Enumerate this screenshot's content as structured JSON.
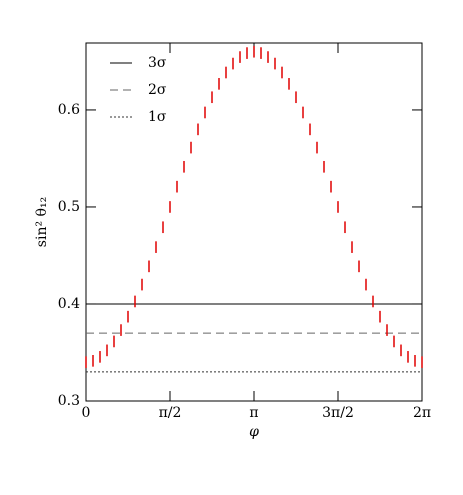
{
  "chart_data": {
    "type": "errorbar",
    "xlabel": "φ",
    "ylabel": "sin² θ₁₂",
    "color": "#e00000",
    "x": [
      0,
      0.1309,
      0.2618,
      0.3927,
      0.5236,
      0.6545,
      0.7854,
      0.9163,
      1.0472,
      1.1781,
      1.309,
      1.4399,
      1.5708,
      1.7017,
      1.8326,
      1.9635,
      2.0944,
      2.2253,
      2.3562,
      2.4871,
      2.618,
      2.7489,
      2.8798,
      3.0107,
      3.1416,
      3.2725,
      3.4034,
      3.5343,
      3.6652,
      3.7961,
      3.927,
      4.0579,
      4.1888,
      4.3197,
      4.4506,
      4.5815,
      4.7124,
      4.8433,
      4.9742,
      5.1051,
      5.236,
      5.3669,
      5.4978,
      5.6287,
      5.7596,
      5.8905,
      6.0214,
      6.1523,
      6.2832
    ],
    "values": [
      0.34,
      0.3414,
      0.3455,
      0.3522,
      0.3614,
      0.3731,
      0.3869,
      0.4026,
      0.42,
      0.4388,
      0.4586,
      0.4791,
      0.5,
      0.5209,
      0.5414,
      0.5612,
      0.58,
      0.5974,
      0.6131,
      0.6269,
      0.6386,
      0.6478,
      0.6545,
      0.6586,
      0.66,
      0.6586,
      0.6545,
      0.6478,
      0.6386,
      0.6269,
      0.6131,
      0.5974,
      0.58,
      0.5612,
      0.5414,
      0.5209,
      0.5,
      0.4791,
      0.4586,
      0.4388,
      0.42,
      0.4026,
      0.3869,
      0.3731,
      0.3614,
      0.3522,
      0.3455,
      0.3414,
      0.34
    ],
    "errors": [
      0.006,
      0.006,
      0.006,
      0.006,
      0.006,
      0.006,
      0.006,
      0.006,
      0.006,
      0.006,
      0.006,
      0.006,
      0.006,
      0.006,
      0.006,
      0.006,
      0.006,
      0.006,
      0.006,
      0.006,
      0.006,
      0.006,
      0.006,
      0.006,
      0.006,
      0.006,
      0.006,
      0.006,
      0.006,
      0.006,
      0.006,
      0.006,
      0.006,
      0.006,
      0.006,
      0.006,
      0.006,
      0.006,
      0.006,
      0.006,
      0.006,
      0.006,
      0.006,
      0.006,
      0.006,
      0.006,
      0.006,
      0.006,
      0.006
    ],
    "hlines": [
      {
        "name": "3σ",
        "value": 0.4,
        "style": "solid",
        "color": "#000000"
      },
      {
        "name": "2σ",
        "value": 0.37,
        "style": "dashed",
        "color": "#666666"
      },
      {
        "name": "1σ",
        "value": 0.33,
        "style": "dotted",
        "color": "#333333"
      }
    ],
    "xlim": [
      0,
      6.2832
    ],
    "ylim": [
      0.3,
      0.669
    ],
    "xticks": [
      0,
      {
        "value": 1.5708,
        "label": "π/2"
      },
      {
        "value": 3.1416,
        "label": "π"
      },
      {
        "value": 4.7124,
        "label": "3π/2"
      },
      {
        "value": 6.2832,
        "label": "2π"
      }
    ],
    "yticks": [
      0.3,
      0.4,
      0.5,
      0.6
    ]
  }
}
